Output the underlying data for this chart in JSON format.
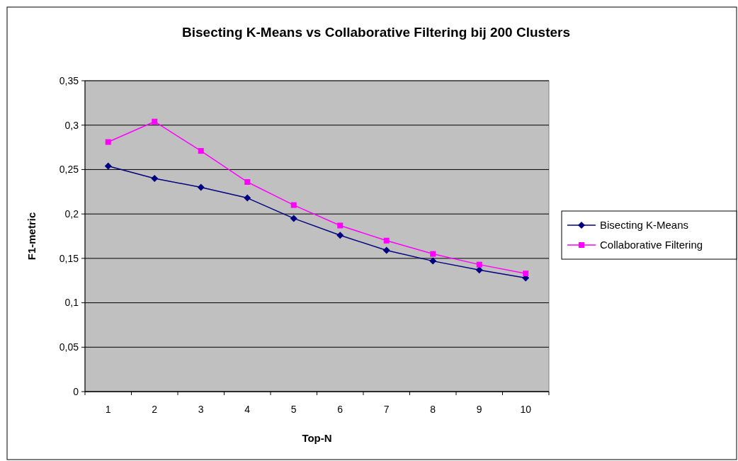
{
  "chart_data": {
    "type": "line",
    "title": "Bisecting K-Means vs Collaborative Filtering bij 200 Clusters",
    "xlabel": "Top-N",
    "ylabel": "F1-metric",
    "categories": [
      "1",
      "2",
      "3",
      "4",
      "5",
      "6",
      "7",
      "8",
      "9",
      "10"
    ],
    "series": [
      {
        "name": "Bisecting K-Means",
        "color": "#000080",
        "marker": "diamond",
        "values": [
          0.254,
          0.24,
          0.23,
          0.218,
          0.195,
          0.176,
          0.159,
          0.147,
          0.137,
          0.128
        ]
      },
      {
        "name": "Collaborative Filtering",
        "color": "#ff00ff",
        "marker": "square",
        "values": [
          0.281,
          0.304,
          0.271,
          0.236,
          0.21,
          0.187,
          0.17,
          0.155,
          0.143,
          0.133
        ]
      }
    ],
    "ylim": [
      0,
      0.35
    ],
    "yticks": [
      {
        "value": 0,
        "label": "0"
      },
      {
        "value": 0.05,
        "label": "0,05"
      },
      {
        "value": 0.1,
        "label": "0,1"
      },
      {
        "value": 0.15,
        "label": "0,15"
      },
      {
        "value": 0.2,
        "label": "0,2"
      },
      {
        "value": 0.25,
        "label": "0,25"
      },
      {
        "value": 0.3,
        "label": "0,3"
      },
      {
        "value": 0.35,
        "label": "0,35"
      }
    ],
    "grid": "y",
    "legend": "right"
  }
}
